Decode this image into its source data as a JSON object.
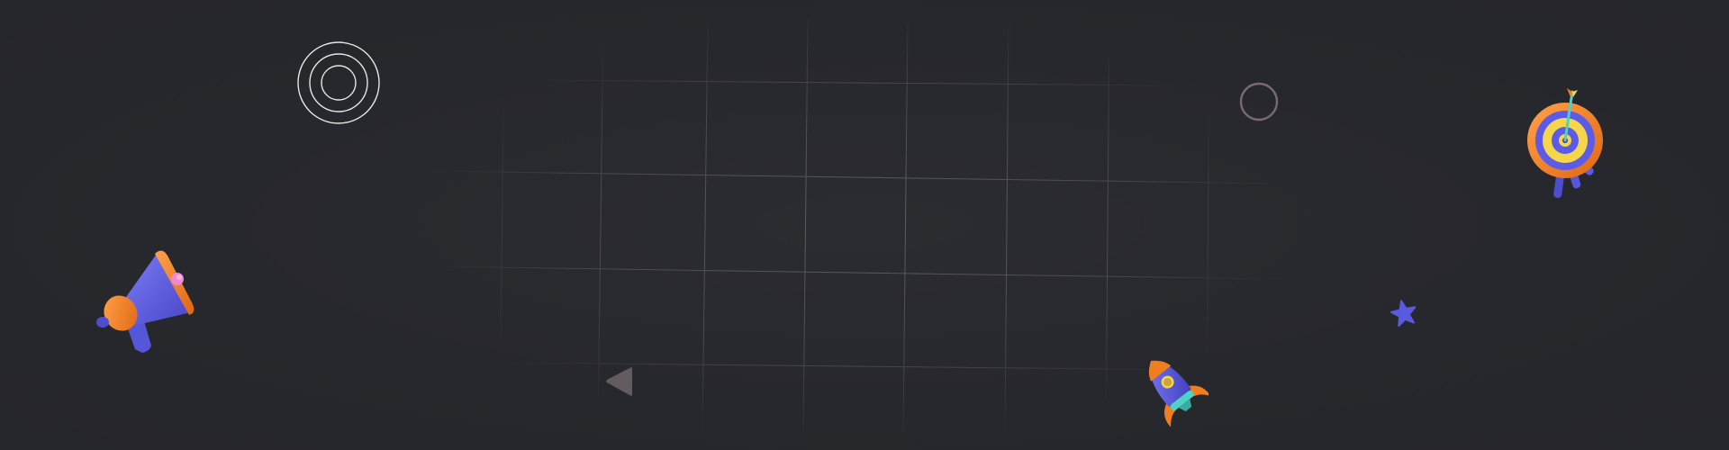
{
  "scene": {
    "background_color": "#27282d",
    "grid_line_color": "#8a8b90",
    "decorations": [
      {
        "id": "concentric-rings",
        "icon": "concentric-circles-icon",
        "color": "#e6e6e6"
      },
      {
        "id": "outline-circle",
        "icon": "circle-outline-icon",
        "color": "#7a6a70"
      },
      {
        "id": "triangle",
        "icon": "play-triangle-icon",
        "color": "#625b60"
      },
      {
        "id": "star",
        "icon": "star-icon",
        "color": "#5a5ae0"
      },
      {
        "id": "megaphone",
        "icon": "megaphone-icon",
        "colors": [
          "#f07e1f",
          "#5b5be8",
          "#f08ad0"
        ]
      },
      {
        "id": "target",
        "icon": "target-with-arrow-icon",
        "colors": [
          "#f07e1f",
          "#f5d54a",
          "#5b5be8"
        ]
      },
      {
        "id": "rocket",
        "icon": "rocket-icon",
        "colors": [
          "#5b5be8",
          "#f07e1f",
          "#4fd1c5"
        ]
      }
    ]
  }
}
